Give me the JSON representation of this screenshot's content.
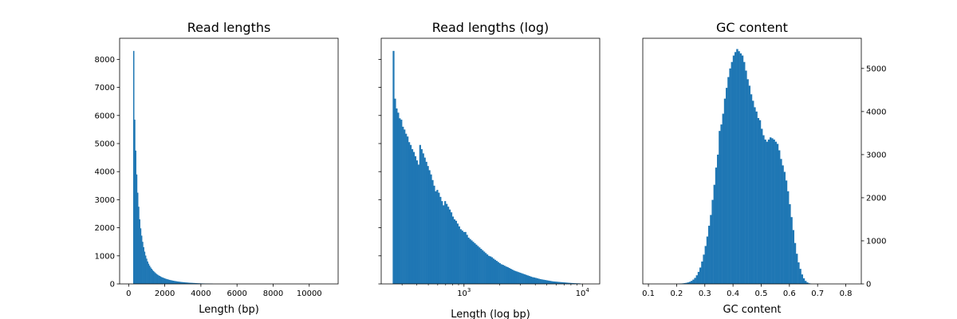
{
  "chart_data": [
    {
      "type": "bar",
      "title": "Read lengths",
      "xlabel": "Length (bp)",
      "ylabel": "",
      "xlim": [
        -500,
        11600
      ],
      "ylim": [
        0,
        8750
      ],
      "xticks": [
        0,
        2000,
        4000,
        6000,
        8000,
        10000
      ],
      "yticks": [
        0,
        1000,
        2000,
        3000,
        4000,
        5000,
        6000,
        7000,
        8000
      ],
      "xtick_labels": [
        "0",
        "2000",
        "4000",
        "6000",
        "8000",
        "10000"
      ],
      "ytick_labels": [
        "0",
        "1000",
        "2000",
        "3000",
        "4000",
        "5000",
        "6000",
        "7000",
        "8000"
      ],
      "ytick_side": "left",
      "bin_width": 55,
      "bin_start": 250,
      "counts": [
        8300,
        5850,
        4750,
        3900,
        3250,
        2750,
        2300,
        1980,
        1720,
        1500,
        1310,
        1150,
        1010,
        900,
        800,
        720,
        650,
        590,
        540,
        495,
        455,
        420,
        385,
        355,
        330,
        305,
        285,
        265,
        245,
        230,
        215,
        200,
        188,
        176,
        165,
        155,
        145,
        136,
        128,
        120,
        113,
        106,
        100,
        94,
        88,
        83,
        78,
        73,
        69,
        65,
        61,
        57,
        54,
        51,
        48,
        45,
        42,
        40,
        38,
        36,
        34,
        32,
        30,
        28,
        26,
        24,
        22,
        20,
        18,
        17,
        16,
        15,
        14,
        13,
        12,
        11,
        10,
        9,
        8,
        7
      ]
    },
    {
      "type": "bar",
      "title": "Read lengths (log)",
      "xlabel": "Length (log bp)",
      "ylabel": "",
      "xscale": "log",
      "xlim": [
        200,
        14000
      ],
      "ylim": [
        0,
        8750
      ],
      "xticks": [
        1000,
        10000
      ],
      "xtick_labels": [
        "10",
        "10"
      ],
      "xtick_exponents": [
        "3",
        "4"
      ],
      "yticks": [
        0,
        1000,
        2000,
        3000,
        4000,
        5000,
        6000,
        7000,
        8000
      ],
      "ytick_labels": [],
      "ytick_side": "left",
      "bin_start_log10": 2.398,
      "bin_width_log10": 0.0132,
      "counts": [
        8300,
        6600,
        6250,
        6100,
        5900,
        5850,
        5600,
        5500,
        5350,
        5250,
        5050,
        4950,
        4800,
        4700,
        4550,
        4400,
        4250,
        4950,
        4800,
        4650,
        4500,
        4350,
        4200,
        4050,
        3900,
        3700,
        3500,
        3300,
        3350,
        3250,
        3100,
        2950,
        2800,
        2950,
        2850,
        2750,
        2650,
        2550,
        2400,
        2300,
        2250,
        2150,
        2050,
        1950,
        1900,
        1850,
        1850,
        1750,
        1650,
        1600,
        1550,
        1500,
        1450,
        1400,
        1350,
        1300,
        1250,
        1200,
        1150,
        1100,
        1050,
        1000,
        980,
        950,
        900,
        860,
        820,
        780,
        740,
        700,
        680,
        650,
        620,
        600,
        570,
        540,
        510,
        480,
        460,
        440,
        420,
        400,
        380,
        360,
        340,
        320,
        300,
        280,
        260,
        240,
        230,
        215,
        200,
        185,
        170,
        160,
        150,
        140,
        130,
        120,
        110,
        100,
        90,
        85,
        80,
        75,
        70,
        65,
        60,
        55,
        50,
        45,
        40,
        36,
        32,
        28,
        25,
        22,
        20,
        18
      ]
    },
    {
      "type": "bar",
      "title": "GC content",
      "xlabel": "GC content",
      "ylabel": "",
      "xlim": [
        0.08,
        0.855
      ],
      "ylim": [
        0,
        5700
      ],
      "xticks": [
        0.1,
        0.2,
        0.3,
        0.4,
        0.5,
        0.6,
        0.7,
        0.8
      ],
      "xtick_labels": [
        "0.1",
        "0.2",
        "0.3",
        "0.4",
        "0.5",
        "0.6",
        "0.7",
        "0.8"
      ],
      "yticks": [
        0,
        1000,
        2000,
        3000,
        4000,
        5000
      ],
      "ytick_labels": [
        "0",
        "1000",
        "2000",
        "3000",
        "4000",
        "5000"
      ],
      "ytick_side": "right",
      "bin_start": 0.2,
      "bin_width": 0.00622,
      "counts": [
        0,
        5,
        8,
        12,
        18,
        25,
        35,
        50,
        70,
        100,
        140,
        200,
        280,
        380,
        520,
        680,
        880,
        1100,
        1350,
        1600,
        1950,
        2300,
        2700,
        3000,
        3550,
        3700,
        3950,
        4300,
        4550,
        4800,
        5000,
        5150,
        5300,
        5380,
        5450,
        5400,
        5350,
        5300,
        5150,
        4950,
        4750,
        4600,
        4400,
        4250,
        4100,
        4000,
        3850,
        3800,
        3600,
        3450,
        3350,
        3300,
        3350,
        3400,
        3380,
        3350,
        3300,
        3250,
        3100,
        2900,
        2750,
        2600,
        2400,
        2150,
        1850,
        1550,
        1250,
        950,
        700,
        500,
        350,
        220,
        130,
        70,
        35,
        15,
        5
      ]
    }
  ]
}
